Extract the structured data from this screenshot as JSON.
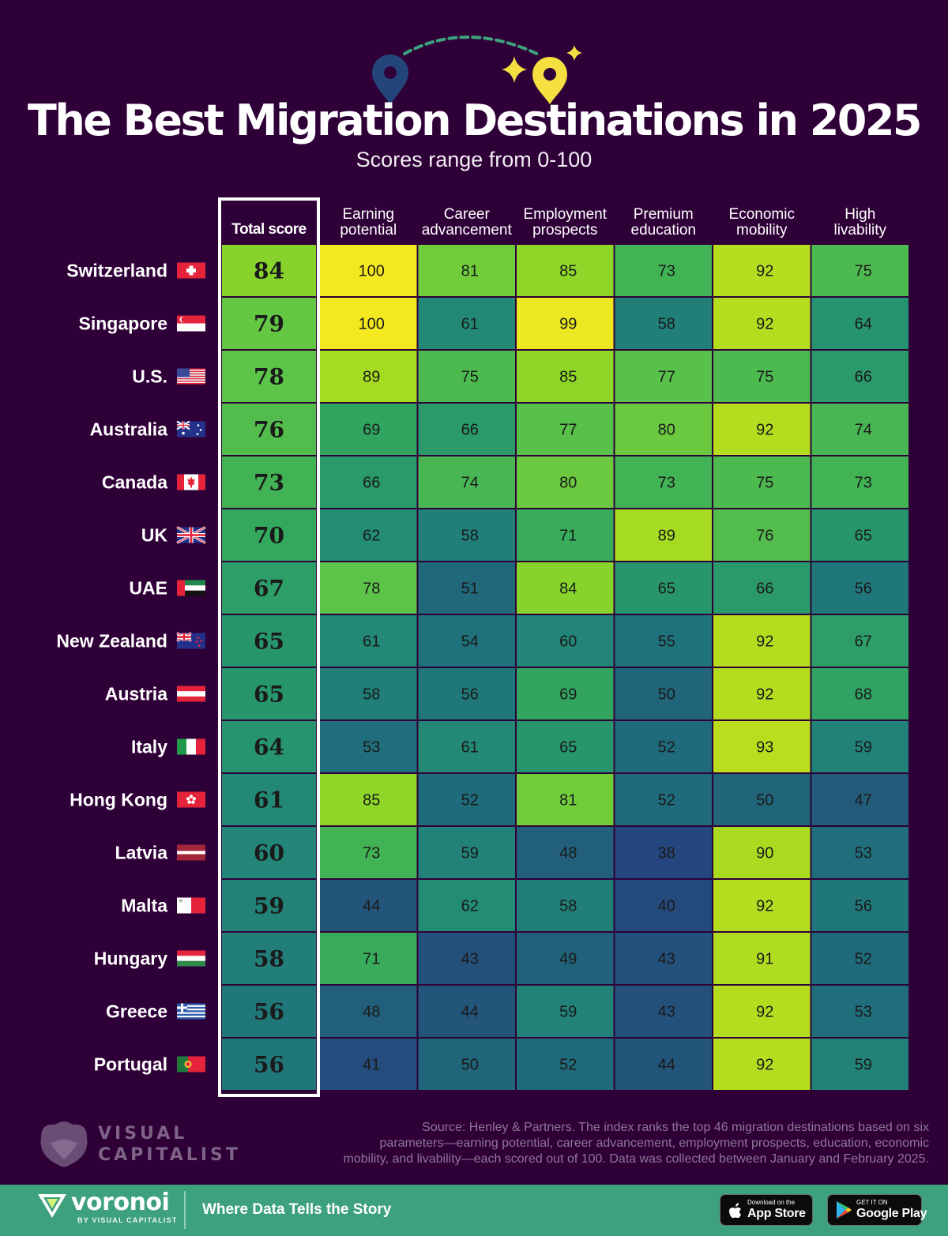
{
  "title": "The Best Migration Destinations in 2025",
  "subtitle": "Scores range from 0-100",
  "chart_data": {
    "type": "heatmap",
    "total_header": "Total score",
    "columns": [
      [
        "Earning",
        "potential"
      ],
      [
        "Career",
        "advancement"
      ],
      [
        "Employment",
        "prospects"
      ],
      [
        "Premium",
        "education"
      ],
      [
        "Economic",
        "mobility"
      ],
      [
        "High",
        "livability"
      ]
    ],
    "rows": [
      {
        "country": "Switzerland",
        "flag": "switzerland-flag",
        "total": 84,
        "values": [
          100,
          81,
          85,
          73,
          92,
          75
        ]
      },
      {
        "country": "Singapore",
        "flag": "singapore-flag",
        "total": 79,
        "values": [
          100,
          61,
          99,
          58,
          92,
          64
        ]
      },
      {
        "country": "U.S.",
        "flag": "us-flag",
        "total": 78,
        "values": [
          89,
          75,
          85,
          77,
          75,
          66
        ]
      },
      {
        "country": "Australia",
        "flag": "australia-flag",
        "total": 76,
        "values": [
          69,
          66,
          77,
          80,
          92,
          74
        ]
      },
      {
        "country": "Canada",
        "flag": "canada-flag",
        "total": 73,
        "values": [
          66,
          74,
          80,
          73,
          75,
          73
        ]
      },
      {
        "country": "UK",
        "flag": "uk-flag",
        "total": 70,
        "values": [
          62,
          58,
          71,
          89,
          76,
          65
        ]
      },
      {
        "country": "UAE",
        "flag": "uae-flag",
        "total": 67,
        "values": [
          78,
          51,
          84,
          65,
          66,
          56
        ]
      },
      {
        "country": "New Zealand",
        "flag": "new-zealand-flag",
        "total": 65,
        "values": [
          61,
          54,
          60,
          55,
          92,
          67
        ]
      },
      {
        "country": "Austria",
        "flag": "austria-flag",
        "total": 65,
        "values": [
          58,
          56,
          69,
          50,
          92,
          68
        ]
      },
      {
        "country": "Italy",
        "flag": "italy-flag",
        "total": 64,
        "values": [
          53,
          61,
          65,
          52,
          93,
          59
        ]
      },
      {
        "country": "Hong Kong",
        "flag": "hong-kong-flag",
        "total": 61,
        "values": [
          85,
          52,
          81,
          52,
          50,
          47
        ]
      },
      {
        "country": "Latvia",
        "flag": "latvia-flag",
        "total": 60,
        "values": [
          73,
          59,
          48,
          38,
          90,
          53
        ]
      },
      {
        "country": "Malta",
        "flag": "malta-flag",
        "total": 59,
        "values": [
          44,
          62,
          58,
          40,
          92,
          56
        ]
      },
      {
        "country": "Hungary",
        "flag": "hungary-flag",
        "total": 58,
        "values": [
          71,
          43,
          49,
          43,
          91,
          52
        ]
      },
      {
        "country": "Greece",
        "flag": "greece-flag",
        "total": 56,
        "values": [
          48,
          44,
          59,
          43,
          92,
          53
        ]
      },
      {
        "country": "Portugal",
        "flag": "portugal-flag",
        "total": 56,
        "values": [
          41,
          50,
          52,
          44,
          92,
          59
        ]
      }
    ],
    "colors": {
      "background": "#2f0038",
      "highlight_border": "#ffffff",
      "cell_text": "#1a1a1a"
    },
    "legend": "none",
    "grid": false
  },
  "source": [
    "Source: Henley & Partners. The index ranks the top 46 migration destinations based on six",
    "parameters—earning potential, career advancement, employment prospects, education, economic",
    "mobility, and livability—each scored out of 100. Data was collected between January and February 2025."
  ],
  "branding": {
    "publisher_line1": "VISUAL",
    "publisher_line2": "CAPITALIST",
    "voronoi": "voronoi",
    "voronoi_by": "BY VISUAL CAPITALIST",
    "tagline": "Where Data Tells the Story",
    "app_store_small": "Download on the",
    "app_store_big": "App Store",
    "google_play_small": "GET IT ON",
    "google_play_big": "Google Play",
    "accent_color": "#3ea17e"
  },
  "icons": [
    "location-pin-icon",
    "sparkle-icon",
    "apple-icon",
    "google-play-icon"
  ]
}
